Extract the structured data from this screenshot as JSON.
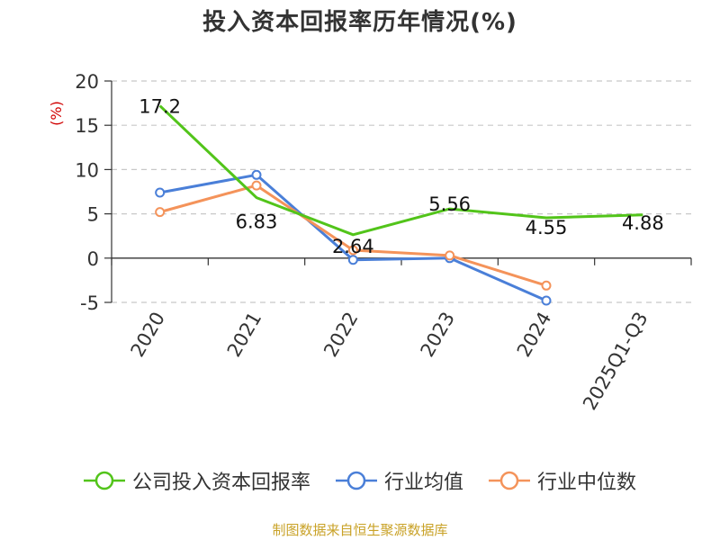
{
  "title": "投入资本回报率历年情况(%)",
  "source": "制图数据来自恒生聚源数据库",
  "chart_data": {
    "type": "line",
    "title": "投入资本回报率历年情况(%)",
    "ylabel": "(%)",
    "xlabel": "",
    "ylim": [
      -5,
      20
    ],
    "yticks": [
      -5,
      0,
      5,
      10,
      15,
      20
    ],
    "categories": [
      "2020",
      "2021",
      "2022",
      "2023",
      "2024",
      "2025Q1-Q3"
    ],
    "grid": true,
    "legend_position": "bottom",
    "series": [
      {
        "name": "公司投入资本回报率",
        "color": "#52c41a",
        "values": [
          17.2,
          6.83,
          2.64,
          5.56,
          4.55,
          4.88
        ],
        "labels": [
          "17.2",
          "6.83",
          "2.64",
          "5.56",
          "4.55",
          "4.88"
        ]
      },
      {
        "name": "行业均值",
        "color": "#4a7fd8",
        "values": [
          7.4,
          9.4,
          -0.2,
          0.0,
          -4.8,
          null
        ]
      },
      {
        "name": "行业中位数",
        "color": "#f4935a",
        "values": [
          5.2,
          8.2,
          0.9,
          0.3,
          -3.1,
          null
        ]
      }
    ]
  }
}
